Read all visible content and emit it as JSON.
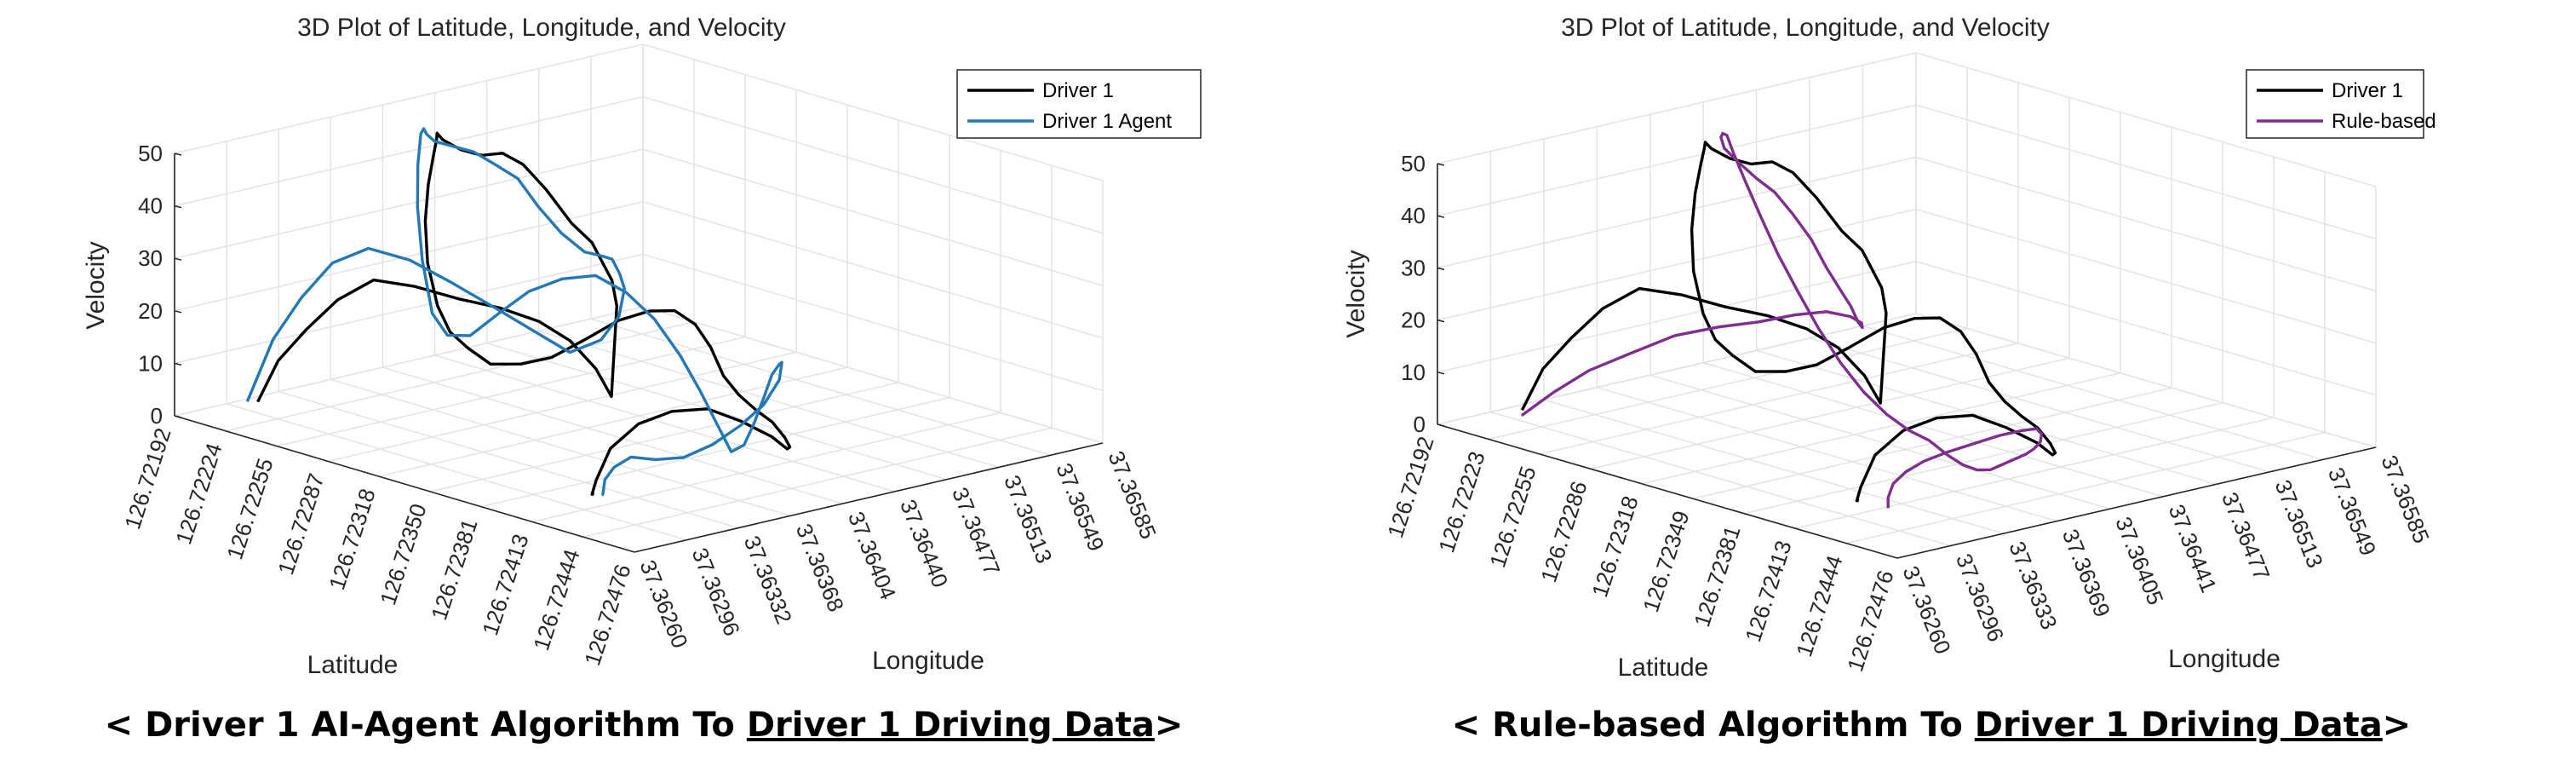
{
  "chart_data": [
    {
      "type": "line",
      "title": "3D Plot of Latitude, Longitude, and Velocity",
      "xlabel": "Latitude",
      "ylabel": "Longitude",
      "zlabel": "Velocity",
      "latitude_ticks": [
        "126.72192",
        "126.72224",
        "126.72255",
        "126.72287",
        "126.72318",
        "126.72350",
        "126.72381",
        "126.72413",
        "126.72444",
        "126.72476"
      ],
      "longitude_ticks": [
        "37.36260",
        "37.36296",
        "37.36332",
        "37.36368",
        "37.36404",
        "37.36440",
        "37.36477",
        "37.36513",
        "37.36549",
        "37.36585"
      ],
      "velocity_ticks": [
        "0",
        "10",
        "20",
        "30",
        "40",
        "50"
      ],
      "zlim": [
        0,
        50
      ],
      "grid": true,
      "legend_position": "top-right",
      "series": [
        {
          "name": "Driver 1",
          "color": "#000000",
          "lat": [
            0.2,
            0.4,
            0.65,
            1.0,
            1.35,
            1.75,
            2.2,
            2.5,
            2.75,
            2.95,
            3.05,
            3.05,
            2.85,
            2.45,
            2.05,
            1.65,
            1.15,
            0.65,
            0.3,
            0.1,
            0.0,
            0.0,
            0.05,
            0.35,
            0.75,
            1.1,
            1.4,
            1.75,
            2.15,
            2.65,
            3.15,
            3.7,
            4.3,
            4.95,
            5.55,
            6.15,
            6.7,
            7.2,
            7.6,
            7.9,
            8.1,
            8.3,
            8.55,
            8.9,
            9.25,
            9.55,
            9.75,
            9.8,
            9.6,
            9.15,
            8.6,
            8.0,
            7.4,
            6.9,
            6.6,
            6.5,
            6.5,
            6.52
          ],
          "lon": [
            1.4,
            1.6,
            1.9,
            2.15,
            2.5,
            2.9,
            3.3,
            3.8,
            4.3,
            4.7,
            5.1,
            5.4,
            5.7,
            6.0,
            6.2,
            6.4,
            6.5,
            6.5,
            6.4,
            6.2,
            5.9,
            5.5,
            5.1,
            4.7,
            4.3,
            3.9,
            3.5,
            3.1,
            2.75,
            2.45,
            2.2,
            2.0,
            1.85,
            1.8,
            1.8,
            1.85,
            1.95,
            2.05,
            2.15,
            2.25,
            2.35,
            2.4,
            2.45,
            2.45,
            2.4,
            2.35,
            2.25,
            2.15,
            2.05,
            1.9,
            1.8,
            1.7,
            1.65,
            1.6,
            1.62,
            1.64,
            1.66,
            1.66
          ],
          "velocity": [
            0,
            8,
            14,
            20,
            24,
            23,
            21,
            19,
            16,
            12,
            6,
            0,
            16,
            19,
            21,
            23,
            25,
            30,
            34,
            36,
            36,
            38,
            41,
            44,
            45,
            44,
            40,
            35,
            29,
            23,
            20,
            19,
            18,
            20,
            23,
            28,
            33,
            36,
            37,
            35,
            31,
            26,
            23,
            21,
            20,
            18,
            17,
            17,
            19,
            21,
            22,
            20,
            16,
            10,
            3,
            0,
            0,
            0
          ]
        },
        {
          "name": "Driver 1 Agent",
          "color": "#2478b4",
          "lat": [
            0.1,
            0.35,
            0.6,
            0.95,
            1.3,
            1.7,
            2.1,
            2.45,
            2.75,
            3.0,
            3.2,
            3.25,
            3.05,
            2.65,
            2.25,
            1.85,
            1.35,
            0.85,
            0.45,
            0.2,
            0.05,
            0.0,
            0.0,
            0.05,
            0.3,
            0.65,
            1.0,
            1.35,
            1.75,
            2.2,
            2.7,
            3.25,
            3.85,
            4.45,
            5.05,
            5.65,
            6.2,
            6.7,
            7.15,
            7.55,
            7.9,
            8.2,
            8.45,
            8.7,
            8.95,
            9.2,
            9.45,
            9.7,
            9.85,
            9.9,
            9.7,
            9.3,
            8.8,
            8.25,
            7.7,
            7.2,
            6.85,
            6.65,
            6.6,
            6.62
          ],
          "lon": [
            1.3,
            1.55,
            1.85,
            2.1,
            2.45,
            2.85,
            3.25,
            3.75,
            4.25,
            4.65,
            5.05,
            5.35,
            5.65,
            5.95,
            6.2,
            6.4,
            6.55,
            6.6,
            6.55,
            6.4,
            6.1,
            5.75,
            5.35,
            4.95,
            4.55,
            4.15,
            3.75,
            3.35,
            2.95,
            2.6,
            2.3,
            2.05,
            1.9,
            1.85,
            1.85,
            1.9,
            2.0,
            2.1,
            2.2,
            2.3,
            2.35,
            2.4,
            2.4,
            2.4,
            2.35,
            2.3,
            2.2,
            2.1,
            2.0,
            1.9,
            1.8,
            1.75,
            1.7,
            1.68,
            1.68,
            1.7,
            1.72,
            1.74,
            1.75,
            1.75
          ],
          "velocity": [
            0,
            12,
            20,
            27,
            30,
            28,
            24,
            19,
            14,
            10,
            12,
            16,
            20,
            21,
            22,
            21,
            20,
            22,
            26,
            31,
            34,
            37,
            39,
            41,
            44,
            47,
            48,
            44,
            38,
            30,
            22,
            20,
            22,
            28,
            34,
            38,
            40,
            38,
            34,
            28,
            22,
            16,
            12,
            14,
            19,
            25,
            30,
            33,
            34,
            31,
            26,
            21,
            16,
            12,
            10,
            9,
            6,
            3,
            0,
            0
          ]
        }
      ]
    },
    {
      "type": "line",
      "title": "3D Plot of Latitude, Longitude, and Velocity",
      "xlabel": "Latitude",
      "ylabel": "Longitude",
      "zlabel": "Velocity",
      "latitude_ticks": [
        "126.72192",
        "126.72223",
        "126.72255",
        "126.72286",
        "126.72318",
        "126.72349",
        "126.72381",
        "126.72413",
        "126.72444",
        "126.72476"
      ],
      "longitude_ticks": [
        "37.36260",
        "37.36296",
        "37.36333",
        "37.36369",
        "37.36405",
        "37.36441",
        "37.36477",
        "37.36513",
        "37.36549",
        "37.36585"
      ],
      "velocity_ticks": [
        "0",
        "10",
        "20",
        "30",
        "40",
        "50"
      ],
      "zlim": [
        0,
        50
      ],
      "grid": true,
      "legend_position": "top-right",
      "series": [
        {
          "name": "Driver 1",
          "color": "#000000",
          "lat": [
            0.2,
            0.4,
            0.65,
            1.0,
            1.35,
            1.75,
            2.2,
            2.5,
            2.75,
            2.95,
            3.05,
            3.05,
            2.85,
            2.45,
            2.05,
            1.65,
            1.15,
            0.65,
            0.3,
            0.1,
            0.0,
            0.0,
            0.05,
            0.35,
            0.75,
            1.1,
            1.4,
            1.75,
            2.15,
            2.65,
            3.15,
            3.7,
            4.3,
            4.95,
            5.55,
            6.15,
            6.7,
            7.2,
            7.6,
            7.9,
            8.1,
            8.3,
            8.55,
            8.9,
            9.25,
            9.55,
            9.75,
            9.8,
            9.6,
            9.15,
            8.6,
            8.0,
            7.4,
            6.9,
            6.6,
            6.5,
            6.5,
            6.52
          ],
          "lon": [
            1.4,
            1.6,
            1.9,
            2.15,
            2.5,
            2.9,
            3.3,
            3.8,
            4.3,
            4.7,
            5.1,
            5.4,
            5.7,
            6.0,
            6.2,
            6.4,
            6.5,
            6.5,
            6.4,
            6.2,
            5.9,
            5.5,
            5.1,
            4.7,
            4.3,
            3.9,
            3.5,
            3.1,
            2.75,
            2.45,
            2.2,
            2.0,
            1.85,
            1.8,
            1.8,
            1.85,
            1.95,
            2.05,
            2.15,
            2.25,
            2.35,
            2.4,
            2.45,
            2.45,
            2.4,
            2.35,
            2.25,
            2.15,
            2.05,
            1.9,
            1.8,
            1.7,
            1.65,
            1.6,
            1.62,
            1.64,
            1.66,
            1.66
          ],
          "velocity": [
            0,
            8,
            14,
            20,
            24,
            23,
            21,
            19,
            16,
            12,
            6,
            0,
            16,
            19,
            21,
            23,
            25,
            30,
            34,
            36,
            36,
            38,
            41,
            44,
            45,
            44,
            40,
            35,
            29,
            23,
            20,
            19,
            18,
            20,
            23,
            28,
            33,
            36,
            37,
            35,
            31,
            26,
            23,
            21,
            20,
            18,
            17,
            17,
            19,
            21,
            22,
            20,
            16,
            10,
            3,
            0,
            0,
            0
          ]
        },
        {
          "name": "Rule-based",
          "color": "#7e2f8e",
          "lat": [
            0.4,
            0.8,
            1.25,
            1.75,
            2.25,
            2.7,
            3.05,
            3.3,
            3.45,
            3.45,
            3.2,
            2.8,
            2.35,
            1.9,
            1.45,
            1.0,
            0.6,
            0.3,
            0.1,
            0.0,
            0.0,
            0.15,
            0.5,
            0.95,
            1.45,
            2.0,
            2.6,
            3.2,
            3.8,
            4.4,
            4.95,
            5.5,
            6.0,
            6.45,
            6.85,
            7.2,
            7.55,
            7.85,
            8.15,
            8.45,
            8.75,
            9.05,
            9.35,
            9.6,
            9.8,
            9.9,
            9.85,
            9.6,
            9.2,
            8.7,
            8.2,
            7.75,
            7.4,
            7.15,
            7.05,
            7.05
          ],
          "lon": [
            1.2,
            1.4,
            1.65,
            1.95,
            2.3,
            2.7,
            3.1,
            3.55,
            4.0,
            4.45,
            4.9,
            5.3,
            5.65,
            5.95,
            6.2,
            6.35,
            6.45,
            6.4,
            6.25,
            6.0,
            5.65,
            5.25,
            4.85,
            4.45,
            4.05,
            3.65,
            3.3,
            3.0,
            2.75,
            2.55,
            2.4,
            2.3,
            2.25,
            2.25,
            2.28,
            2.32,
            2.35,
            2.35,
            2.32,
            2.28,
            2.22,
            2.15,
            2.08,
            2.0,
            1.92,
            1.85,
            1.8,
            1.76,
            1.73,
            1.71,
            1.7,
            1.7,
            1.7,
            1.7,
            1.7,
            1.7
          ],
          "velocity": [
            0,
            5,
            10,
            14,
            18,
            20,
            21,
            22,
            22,
            20,
            17,
            14,
            13,
            14,
            15,
            18,
            22,
            26,
            30,
            33,
            37,
            41,
            45,
            48,
            50,
            49,
            46,
            42,
            37,
            32,
            27,
            22,
            18,
            15,
            13,
            12,
            10,
            9,
            9,
            10,
            12,
            14,
            16,
            18,
            20,
            22,
            23,
            22,
            20,
            17,
            14,
            11,
            8,
            5,
            2,
            0
          ]
        }
      ]
    }
  ],
  "captions": [
    {
      "prefix": "< Driver 1 AI-Agent Algorithm To ",
      "underlined": "Driver 1 Driving Data",
      "suffix": ">"
    },
    {
      "prefix": "< Rule-based Algorithm To ",
      "underlined": "Driver 1 Driving Data",
      "suffix": ">"
    }
  ]
}
